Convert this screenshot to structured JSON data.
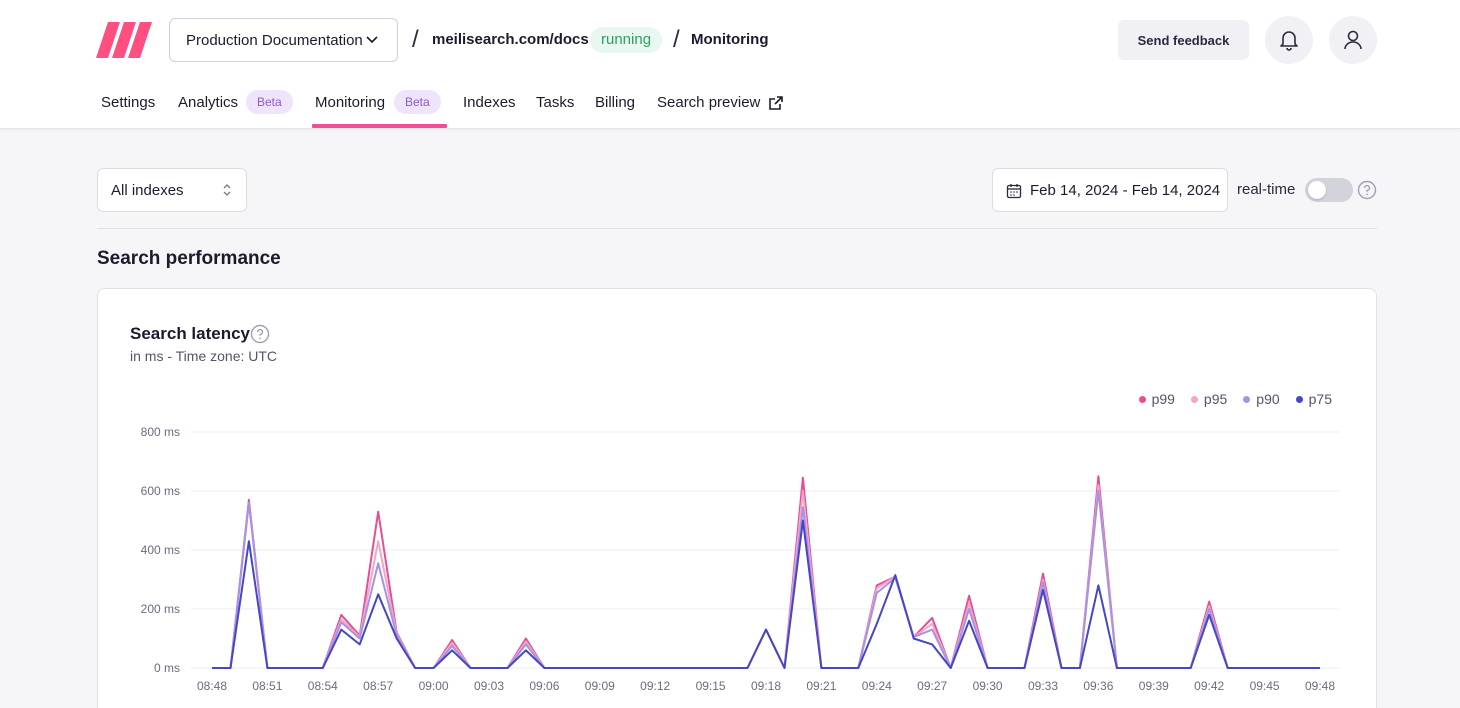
{
  "header": {
    "project": "Production Documentation",
    "url": "meilisearch.com/docs",
    "status": "running",
    "page": "Monitoring",
    "feedback": "Send feedback",
    "brand_color": "#ff4f81"
  },
  "tabs": [
    {
      "label": "Settings"
    },
    {
      "label": "Analytics",
      "badge": "Beta"
    },
    {
      "label": "Monitoring",
      "badge": "Beta",
      "active": true
    },
    {
      "label": "Indexes"
    },
    {
      "label": "Tasks"
    },
    {
      "label": "Billing"
    },
    {
      "label": "Search preview"
    }
  ],
  "toolbar": {
    "index_filter": "All indexes",
    "date_range": "Feb 14, 2024 - Feb 14, 2024",
    "realtime_label": "real-time",
    "realtime_on": false
  },
  "section": {
    "title": "Search performance"
  },
  "card": {
    "title": "Search latency",
    "subtitle": "in ms - Time zone: UTC"
  },
  "chart_data": {
    "type": "line",
    "title": "Search latency",
    "subtitle": "in ms - Time zone: UTC",
    "xlabel": "",
    "ylabel": "",
    "ylim": [
      0,
      800
    ],
    "yticks": [
      0,
      200,
      400,
      600,
      800
    ],
    "ytick_labels": [
      "0 ms",
      "200 ms",
      "400 ms",
      "600 ms",
      "800 ms"
    ],
    "xtick_labels": [
      "08:48",
      "08:51",
      "08:54",
      "08:57",
      "09:00",
      "09:03",
      "09:06",
      "09:09",
      "09:12",
      "09:15",
      "09:18",
      "09:21",
      "09:24",
      "09:27",
      "09:30",
      "09:33",
      "09:36",
      "09:39",
      "09:42",
      "09:45",
      "09:48"
    ],
    "grid": true,
    "legend_position": "top-right",
    "series": [
      {
        "name": "p99",
        "color": "#e44f92",
        "values": [
          0,
          0,
          570,
          0,
          0,
          0,
          0,
          180,
          110,
          530,
          120,
          0,
          0,
          95,
          0,
          0,
          0,
          100,
          0,
          0,
          0,
          0,
          0,
          0,
          0,
          0,
          0,
          0,
          0,
          0,
          130,
          0,
          645,
          0,
          0,
          0,
          280,
          310,
          105,
          170,
          0,
          245,
          0,
          0,
          0,
          320,
          0,
          0,
          650,
          0,
          0,
          0,
          0,
          0,
          225,
          0,
          0,
          0,
          0,
          0,
          0
        ]
      },
      {
        "name": "p95",
        "color": "#f3a6c9",
        "values": [
          0,
          0,
          560,
          0,
          0,
          0,
          0,
          165,
          105,
          430,
          115,
          0,
          0,
          85,
          0,
          0,
          0,
          90,
          0,
          0,
          0,
          0,
          0,
          0,
          0,
          0,
          0,
          0,
          0,
          0,
          130,
          0,
          600,
          0,
          0,
          0,
          270,
          310,
          105,
          150,
          0,
          220,
          0,
          0,
          0,
          300,
          0,
          0,
          620,
          0,
          0,
          0,
          0,
          0,
          210,
          0,
          0,
          0,
          0,
          0,
          0
        ]
      },
      {
        "name": "p90",
        "color": "#a493e6",
        "values": [
          0,
          0,
          560,
          0,
          0,
          0,
          0,
          155,
          100,
          355,
          110,
          0,
          0,
          75,
          0,
          0,
          0,
          80,
          0,
          0,
          0,
          0,
          0,
          0,
          0,
          0,
          0,
          0,
          0,
          0,
          130,
          0,
          545,
          0,
          0,
          0,
          255,
          305,
          105,
          130,
          0,
          200,
          0,
          0,
          0,
          290,
          0,
          0,
          600,
          0,
          0,
          0,
          0,
          0,
          200,
          0,
          0,
          0,
          0,
          0,
          0
        ]
      },
      {
        "name": "p75",
        "color": "#4547c4",
        "values": [
          0,
          0,
          430,
          0,
          0,
          0,
          0,
          130,
          80,
          250,
          100,
          0,
          0,
          60,
          0,
          0,
          0,
          60,
          0,
          0,
          0,
          0,
          0,
          0,
          0,
          0,
          0,
          0,
          0,
          0,
          130,
          0,
          500,
          0,
          0,
          0,
          150,
          315,
          100,
          80,
          0,
          160,
          0,
          0,
          0,
          265,
          0,
          0,
          280,
          0,
          0,
          0,
          0,
          0,
          180,
          0,
          0,
          0,
          0,
          0,
          0
        ]
      }
    ]
  }
}
